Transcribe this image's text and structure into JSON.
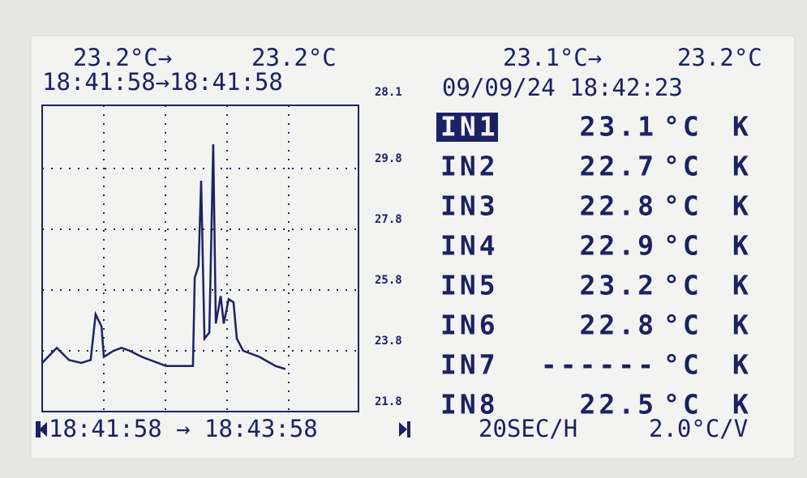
{
  "chart_data": {
    "type": "line",
    "x": [
      0,
      5.7,
      10.4,
      15.2,
      18.9,
      20.8,
      23.1,
      24,
      27.8,
      30.9,
      34.1,
      38.8,
      48.3,
      58.7,
      59.4,
      60.9,
      61.9,
      63.2,
      65.1,
      66.6,
      67.6,
      69.5,
      70.7,
      72.6,
      74.5,
      75.8,
      78.3,
      84.6,
      90.9,
      94.7
    ],
    "series": [
      {
        "name": "IN1",
        "color": "#1c2164",
        "values": [
          23.4,
          23.9,
          23.5,
          23.4,
          23.5,
          25.0,
          24.6,
          23.6,
          23.8,
          23.9,
          23.8,
          23.6,
          23.3,
          23.3,
          26.2,
          26.6,
          29.4,
          24.2,
          24.4,
          30.6,
          24.7,
          25.6,
          24.7,
          25.5,
          25.4,
          24.2,
          23.8,
          23.6,
          23.3,
          23.2
        ]
      }
    ],
    "xlim": [
      0,
      120
    ],
    "xticks": [
      24,
      48,
      72,
      96
    ],
    "ylim": [
      21.8,
      31.8
    ],
    "yticks": [
      21.8,
      23.8,
      25.8,
      27.8,
      29.8
    ],
    "top_label": "28.1",
    "grid": true,
    "time_range": "18:41:58 → 18:43:58"
  },
  "cursor": {
    "temps": [
      "23.2°C→",
      "23.2°C"
    ],
    "times": "18:41:58→18:41:58"
  },
  "header": {
    "temps": [
      "23.1°C→",
      "23.2°C"
    ],
    "datetime": "09/09/24 18:42:23"
  },
  "channels": [
    {
      "name": "IN1",
      "value": "23.1",
      "unit": "°C",
      "type": "K"
    },
    {
      "name": "IN2",
      "value": "22.7",
      "unit": "°C",
      "type": "K"
    },
    {
      "name": "IN3",
      "value": "22.8",
      "unit": "°C",
      "type": "K"
    },
    {
      "name": "IN4",
      "value": "22.9",
      "unit": "°C",
      "type": "K"
    },
    {
      "name": "IN5",
      "value": "23.2",
      "unit": "°C",
      "type": "K"
    },
    {
      "name": "IN6",
      "value": "22.8",
      "unit": "°C",
      "type": "K"
    },
    {
      "name": "IN7",
      "value": "------",
      "unit": "°C",
      "type": "K"
    },
    {
      "name": "IN8",
      "value": "22.5",
      "unit": "°C",
      "type": "K"
    }
  ],
  "footer": {
    "rate": "20SEC/H",
    "scale": "2.0°C/V"
  }
}
